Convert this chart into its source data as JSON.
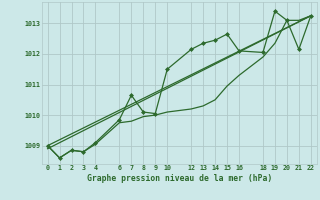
{
  "title": "Graphe pression niveau de la mer (hPa)",
  "background_color": "#cce8e8",
  "grid_color": "#b0c8c8",
  "line_color": "#2d6a2d",
  "marker_color": "#2d6a2d",
  "xlim": [
    -0.5,
    22.5
  ],
  "ylim": [
    1008.4,
    1013.7
  ],
  "xticks": [
    0,
    1,
    2,
    3,
    4,
    6,
    7,
    8,
    9,
    10,
    12,
    13,
    14,
    15,
    16,
    18,
    19,
    20,
    21,
    22
  ],
  "yticks": [
    1009,
    1010,
    1011,
    1012,
    1013
  ],
  "series1_x": [
    0,
    1,
    2,
    3,
    4,
    6,
    7,
    8,
    9,
    10,
    12,
    13,
    14,
    15,
    16,
    18,
    19,
    20,
    21,
    22
  ],
  "series1_y": [
    1009.0,
    1008.6,
    1008.85,
    1008.8,
    1009.1,
    1009.85,
    1010.65,
    1010.1,
    1010.05,
    1011.5,
    1012.15,
    1012.35,
    1012.45,
    1012.65,
    1012.1,
    1012.05,
    1013.4,
    1013.1,
    1012.15,
    1013.25
  ],
  "series2_x": [
    0,
    1,
    2,
    3,
    4,
    6,
    7,
    8,
    9,
    10,
    12,
    13,
    14,
    15,
    16,
    18,
    19,
    20,
    21,
    22
  ],
  "series2_y": [
    1009.0,
    1008.6,
    1008.85,
    1008.8,
    1009.05,
    1009.75,
    1009.8,
    1009.95,
    1010.0,
    1010.1,
    1010.2,
    1010.3,
    1010.5,
    1010.95,
    1011.3,
    1011.9,
    1012.35,
    1013.1,
    1013.1,
    1013.25
  ],
  "trend_x": [
    0,
    22
  ],
  "trend_y": [
    1009.0,
    1013.25
  ],
  "trend2_x": [
    0,
    22
  ],
  "trend2_y": [
    1008.9,
    1013.25
  ]
}
